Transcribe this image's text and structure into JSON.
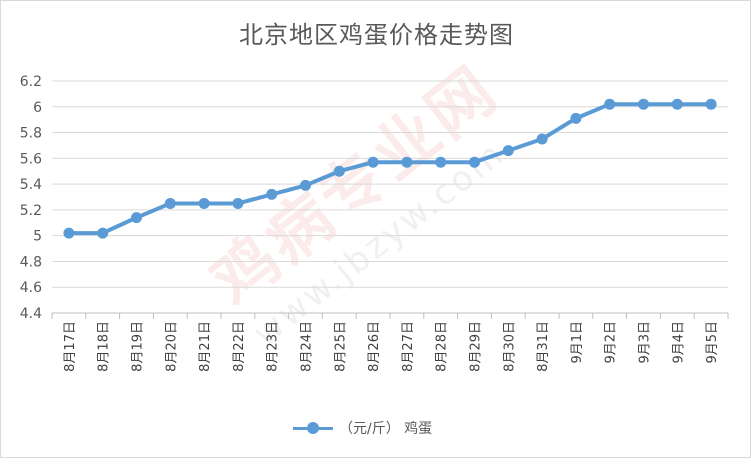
{
  "chart_data": {
    "type": "line",
    "title": "北京地区鸡蛋价格走势图",
    "categories": [
      "8月17日",
      "8月18日",
      "8月19日",
      "8月20日",
      "8月21日",
      "8月22日",
      "8月23日",
      "8月24日",
      "8月25日",
      "8月26日",
      "8月27日",
      "8月28日",
      "8月29日",
      "8月30日",
      "8月31日",
      "9月1日",
      "9月2日",
      "9月3日",
      "9月4日",
      "9月5日"
    ],
    "series": [
      {
        "name": "（元/斤） 鸡蛋",
        "values": [
          5.02,
          5.02,
          5.14,
          5.25,
          5.25,
          5.25,
          5.32,
          5.39,
          5.5,
          5.57,
          5.57,
          5.57,
          5.57,
          5.66,
          5.75,
          5.91,
          6.02,
          6.02,
          6.02,
          6.02
        ],
        "color": "#5b9bd5"
      }
    ],
    "ylim": [
      4.4,
      6.2
    ],
    "yticks": [
      "4.4",
      "4.6",
      "4.8",
      "5",
      "5.2",
      "5.4",
      "5.6",
      "5.8",
      "6",
      "6.2"
    ],
    "grid": true,
    "legend_position": "bottom"
  },
  "watermark": {
    "main": "鸡病专业网",
    "url": "www.jbzyw.com"
  }
}
